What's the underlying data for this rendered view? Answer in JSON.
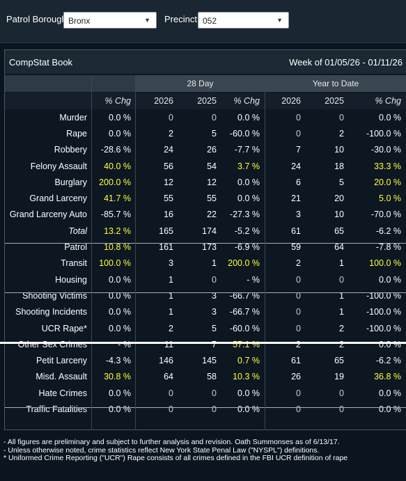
{
  "filters": {
    "borough_label": "Patrol Borough:",
    "borough_value": "Bronx",
    "precinct_label": "Precinct:",
    "precinct_value": "052"
  },
  "book": {
    "title": "CompStat Book",
    "week": "Week of 01/05/26 - 01/11/26",
    "group_28": "28 Day",
    "group_ytd": "Year to Date"
  },
  "headers": [
    "% Chg",
    "2026",
    "2025",
    "% Chg",
    "2026",
    "2025",
    "% Chg"
  ],
  "rows": [
    {
      "label": "Murder",
      "vals": [
        "0.0 %",
        "0",
        "0",
        "0.0 %",
        "0",
        "0",
        "0.0 %"
      ],
      "hl": [
        false,
        false,
        false,
        false,
        false,
        false,
        false
      ]
    },
    {
      "label": "Rape",
      "vals": [
        "0.0 %",
        "2",
        "5",
        "-60.0 %",
        "0",
        "2",
        "-100.0 %"
      ],
      "hl": [
        false,
        false,
        false,
        false,
        false,
        false,
        false
      ]
    },
    {
      "label": "Robbery",
      "vals": [
        "-28.6 %",
        "24",
        "26",
        "-7.7 %",
        "7",
        "10",
        "-30.0 %"
      ],
      "hl": [
        false,
        false,
        false,
        false,
        false,
        false,
        false
      ]
    },
    {
      "label": "Felony Assault",
      "vals": [
        "40.0 %",
        "56",
        "54",
        "3.7 %",
        "24",
        "18",
        "33.3 %"
      ],
      "hl": [
        true,
        false,
        false,
        true,
        false,
        false,
        true
      ]
    },
    {
      "label": "Burglary",
      "vals": [
        "200.0 %",
        "12",
        "12",
        "0.0 %",
        "6",
        "5",
        "20.0 %"
      ],
      "hl": [
        true,
        false,
        false,
        false,
        false,
        false,
        true
      ]
    },
    {
      "label": "Grand Larceny",
      "vals": [
        "41.7 %",
        "55",
        "55",
        "0.0 %",
        "21",
        "20",
        "5.0 %"
      ],
      "hl": [
        true,
        false,
        false,
        false,
        false,
        false,
        true
      ]
    },
    {
      "label": "Grand Larceny Auto",
      "vals": [
        "-85.7 %",
        "16",
        "22",
        "-27.3 %",
        "3",
        "10",
        "-70.0 %"
      ],
      "hl": [
        false,
        false,
        false,
        false,
        false,
        false,
        false
      ]
    },
    {
      "label": "Total",
      "vals": [
        "13.2 %",
        "165",
        "174",
        "-5.2 %",
        "61",
        "65",
        "-6.2 %"
      ],
      "hl": [
        true,
        false,
        false,
        false,
        false,
        false,
        false
      ],
      "total": true
    },
    {
      "label": "Patrol",
      "vals": [
        "10.8 %",
        "161",
        "173",
        "-6.9 %",
        "59",
        "64",
        "-7.8 %"
      ],
      "hl": [
        true,
        false,
        false,
        false,
        false,
        false,
        false
      ]
    },
    {
      "label": "Transit",
      "vals": [
        "100.0 %",
        "3",
        "1",
        "200.0 %",
        "2",
        "1",
        "100.0 %"
      ],
      "hl": [
        true,
        false,
        false,
        true,
        false,
        false,
        true
      ]
    },
    {
      "label": "Housing",
      "vals": [
        "0.0 %",
        "1",
        "0",
        "- %",
        "0",
        "0",
        "0.0 %"
      ],
      "hl": [
        false,
        false,
        false,
        false,
        false,
        false,
        false
      ]
    },
    {
      "label": "Shooting Victims",
      "vals": [
        "0.0 %",
        "1",
        "3",
        "-66.7 %",
        "0",
        "1",
        "-100.0 %"
      ],
      "hl": [
        false,
        false,
        false,
        false,
        false,
        false,
        false
      ]
    },
    {
      "label": "Shooting Incidents",
      "vals": [
        "0.0 %",
        "1",
        "3",
        "-66.7 %",
        "0",
        "1",
        "-100.0 %"
      ],
      "hl": [
        false,
        false,
        false,
        false,
        false,
        false,
        false
      ]
    },
    {
      "label": "UCR Rape*",
      "vals": [
        "0.0 %",
        "2",
        "5",
        "-60.0 %",
        "0",
        "2",
        "-100.0 %"
      ],
      "hl": [
        false,
        false,
        false,
        false,
        false,
        false,
        false
      ]
    },
    {
      "label": "Other Sex Crimes",
      "vals": [
        "- %",
        "11",
        "7",
        "57.1 %",
        "2",
        "2",
        "0.0 %"
      ],
      "hl": [
        false,
        false,
        false,
        true,
        false,
        false,
        false
      ]
    },
    {
      "label": "Petit Larceny",
      "vals": [
        "-4.3 %",
        "146",
        "145",
        "0.7 %",
        "61",
        "65",
        "-6.2 %"
      ],
      "hl": [
        false,
        false,
        false,
        true,
        false,
        false,
        false
      ]
    },
    {
      "label": "Misd. Assault",
      "vals": [
        "30.8 %",
        "64",
        "58",
        "10.3 %",
        "26",
        "19",
        "36.8 %"
      ],
      "hl": [
        true,
        false,
        false,
        true,
        false,
        false,
        true
      ]
    },
    {
      "label": "Hate Crimes",
      "vals": [
        "0.0 %",
        "0",
        "0",
        "0.0 %",
        "0",
        "0",
        "0.0 %"
      ],
      "hl": [
        false,
        false,
        false,
        false,
        false,
        false,
        false
      ]
    },
    {
      "label": "Traffic Fatalities",
      "vals": [
        "0.0 %",
        "0",
        "0",
        "0.0 %",
        "0",
        "0",
        "0.0 %"
      ],
      "hl": [
        false,
        false,
        false,
        false,
        false,
        false,
        false
      ]
    }
  ],
  "footnotes": [
    "- All figures are preliminary and subject to further analysis and revision. Oath Summonses as of 6/13/17.",
    "- Unless otherwise noted, crime statistics reflect New York State Penal Law (\"NYSPL\") definitions.",
    "* Uniformed Crime Reporting (\"UCR\") Rape consists of all crimes defined in the FBI UCR definition of rape"
  ]
}
